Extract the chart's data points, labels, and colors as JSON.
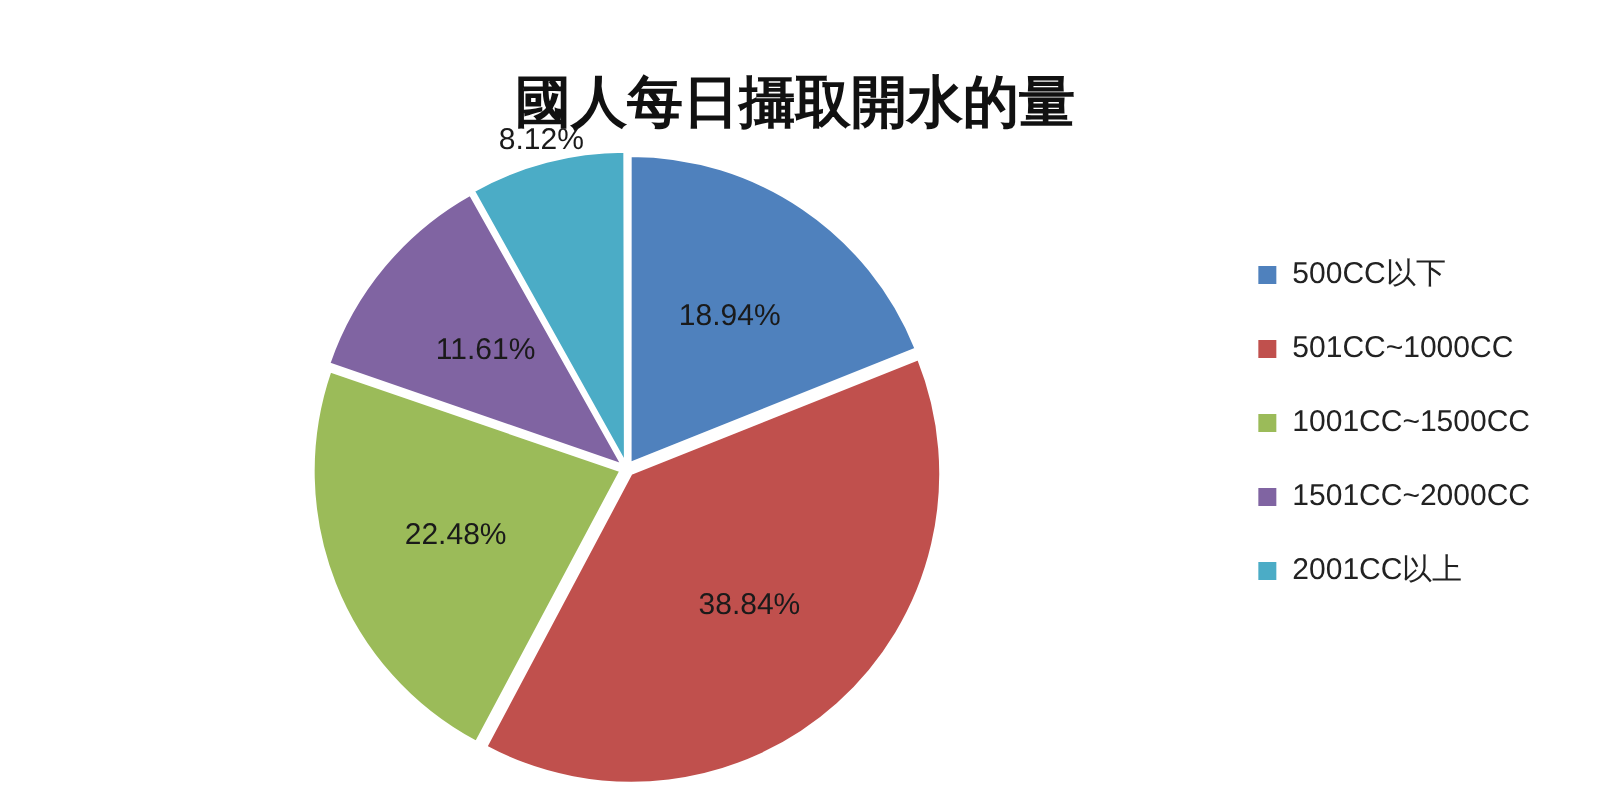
{
  "chart_data": {
    "type": "pie",
    "title": "國人每日攝取開水的量",
    "categories": [
      "500CC以下",
      "501CC~1000CC",
      "1001CC~1500CC",
      "1501CC~2000CC",
      "2001CC以上"
    ],
    "values": [
      18.94,
      38.84,
      22.48,
      11.61,
      8.12
    ],
    "colors": [
      "#4f81bd",
      "#c0504d",
      "#9bbb59",
      "#8064a2",
      "#4bacc6"
    ],
    "value_labels": [
      "18.94%",
      "38.84%",
      "22.48%",
      "11.61%",
      "8.12%"
    ],
    "legend": "right"
  }
}
